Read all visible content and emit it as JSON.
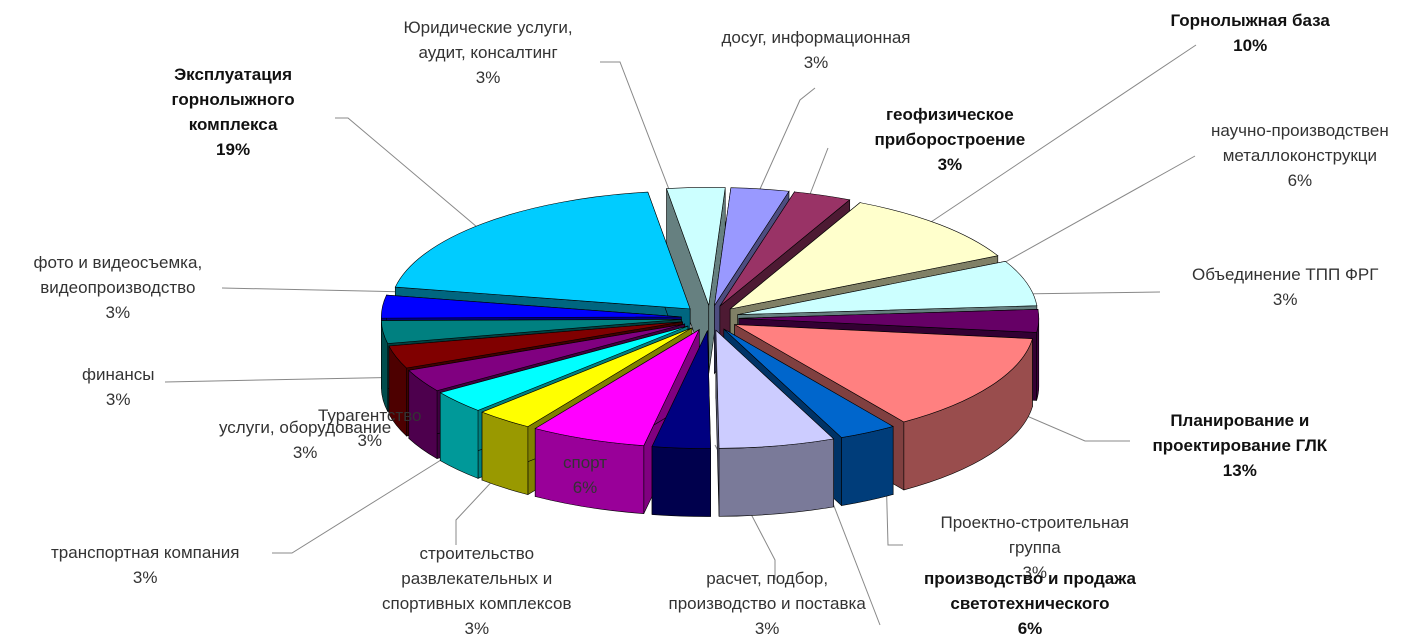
{
  "chart_data": {
    "type": "pie",
    "title": "",
    "style": "exploded 3D pie",
    "series": [
      {
        "label": "досуг, информационная",
        "value": 3,
        "color": "#9999ff",
        "bold": false
      },
      {
        "label": "геофизическое\nприборостроение",
        "value": 3,
        "color": "#993366",
        "bold": true
      },
      {
        "label": "Горнолыжная база",
        "value": 10,
        "color": "#ffffcc",
        "bold": true
      },
      {
        "label": "научно-производствен\nметаллоконструкци",
        "value": 6,
        "color": "#ccffff",
        "bold": false
      },
      {
        "label": "Объединение ТПП ФРГ",
        "value": 3,
        "color": "#660066",
        "bold": false
      },
      {
        "label": "Планирование и\nпроектирование ГЛК",
        "value": 13,
        "color": "#ff8080",
        "bold": true
      },
      {
        "label": "Проектно-строительная\nгруппа",
        "value": 3,
        "color": "#0066cc",
        "bold": false
      },
      {
        "label": "производство и продажа\nсветотехнического",
        "value": 6,
        "color": "#ccccff",
        "bold": true
      },
      {
        "label": "расчет, подбор,\nпроизводство и поставка",
        "value": 3,
        "color": "#000080",
        "bold": false
      },
      {
        "label": "спорт",
        "value": 6,
        "color": "#ff00ff",
        "bold": false
      },
      {
        "label": "строительство\nразвлекательных и\nспортивных комплексов",
        "value": 3,
        "color": "#ffff00",
        "bold": false
      },
      {
        "label": "транспортная компания",
        "value": 3,
        "color": "#00ffff",
        "bold": false
      },
      {
        "label": "Турагентство",
        "value": 3,
        "color": "#800080",
        "bold": false
      },
      {
        "label": "услуги, оборудование",
        "value": 3,
        "color": "#800000",
        "bold": false
      },
      {
        "label": "финансы",
        "value": 3,
        "color": "#008080",
        "bold": false
      },
      {
        "label": "фото и видеосъемка,\nвидеопроизводство",
        "value": 3,
        "color": "#0000ff",
        "bold": false
      },
      {
        "label": "Эксплуатация\nгорнолыжного\nкомплекса",
        "value": 19,
        "color": "#00ccff",
        "bold": true
      },
      {
        "label": "Юридические услуги,\nаудит, консалтинг",
        "value": 3,
        "color": "#ccffff",
        "bold": false
      }
    ]
  }
}
